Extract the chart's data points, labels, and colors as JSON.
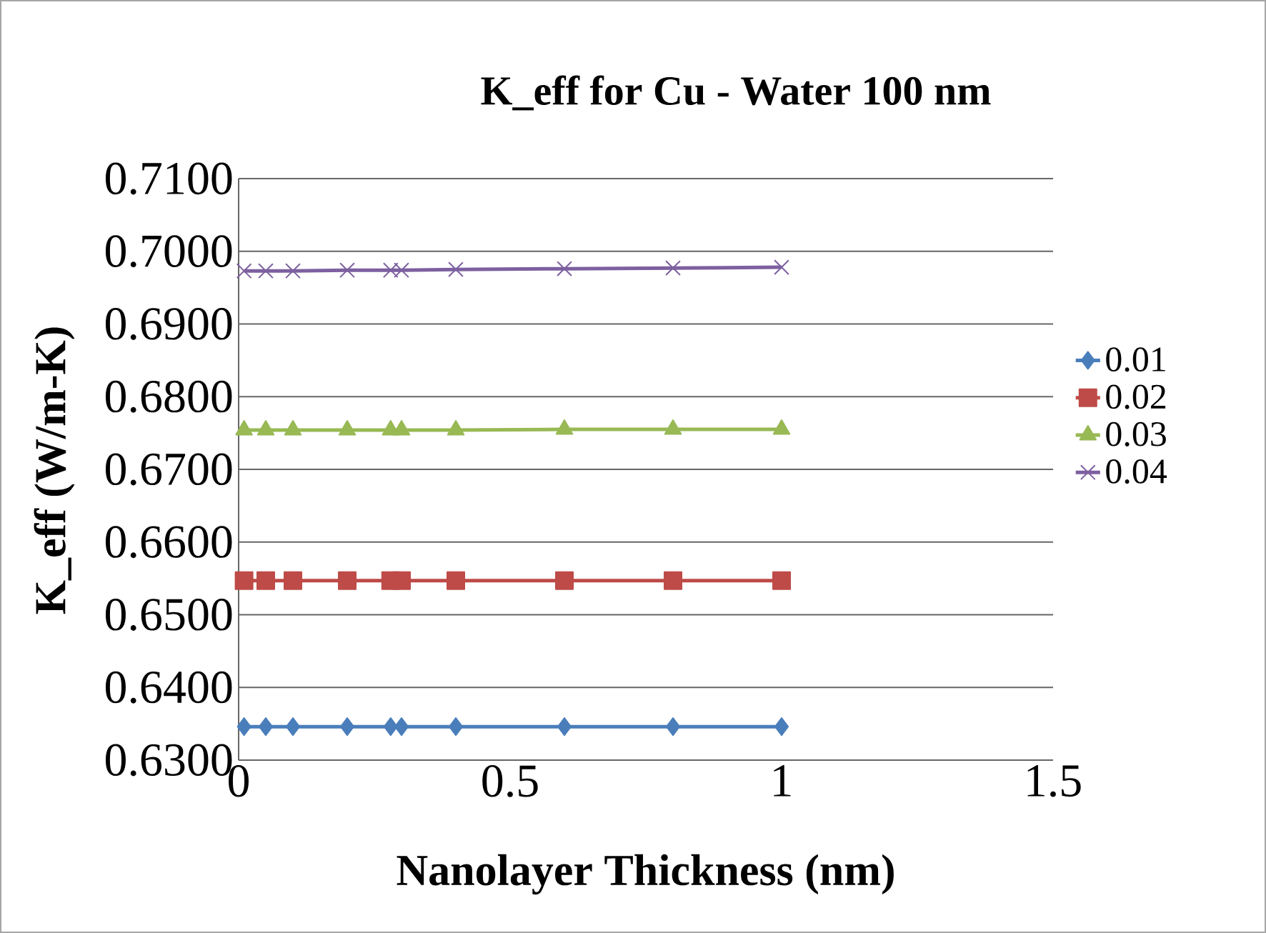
{
  "chart_data": {
    "type": "line",
    "title": "K_eff for Cu - Water 100 nm",
    "xlabel": "Nanolayer Thickness (nm)",
    "ylabel": "K_eff (W/m-K)",
    "x": [
      0.01,
      0.05,
      0.1,
      0.2,
      0.28,
      0.3,
      0.4,
      0.6,
      0.8,
      1
    ],
    "series": [
      {
        "name": "0.01",
        "color": "#4a7ebb",
        "marker": "diamond",
        "values": [
          0.6346,
          0.6346,
          0.6346,
          0.6346,
          0.6346,
          0.6346,
          0.6346,
          0.6346,
          0.6346,
          0.6346
        ]
      },
      {
        "name": "0.02",
        "color": "#be4b48",
        "marker": "square",
        "values": [
          0.6547,
          0.6547,
          0.6547,
          0.6547,
          0.6547,
          0.6547,
          0.6547,
          0.6547,
          0.6547,
          0.6547
        ]
      },
      {
        "name": "0.03",
        "color": "#98b954",
        "marker": "triangle",
        "values": [
          0.6754,
          0.6754,
          0.6754,
          0.6754,
          0.6754,
          0.6754,
          0.6754,
          0.6755,
          0.6755,
          0.6755
        ]
      },
      {
        "name": "0.04",
        "color": "#7d60a0",
        "marker": "cross",
        "values": [
          0.6973,
          0.6973,
          0.6973,
          0.6974,
          0.6974,
          0.6974,
          0.6975,
          0.6976,
          0.6977,
          0.6978
        ]
      }
    ],
    "xlim": [
      0,
      1.5
    ],
    "xticks": [
      0,
      0.5,
      1,
      1.5
    ],
    "ylim": [
      0.63,
      0.71
    ],
    "yticks": [
      {
        "value": 0.63,
        "label": "0.6300"
      },
      {
        "value": 0.64,
        "label": "0.6400"
      },
      {
        "value": 0.65,
        "label": "0.6500"
      },
      {
        "value": 0.66,
        "label": "0.6600"
      },
      {
        "value": 0.67,
        "label": "0.6700"
      },
      {
        "value": 0.68,
        "label": "0.6800"
      },
      {
        "value": 0.69,
        "label": "0.6900"
      },
      {
        "value": 0.7,
        "label": "0.7000"
      },
      {
        "value": 0.71,
        "label": "0.7100"
      }
    ],
    "grid": "y",
    "legend": "right",
    "line_style": "solid"
  }
}
